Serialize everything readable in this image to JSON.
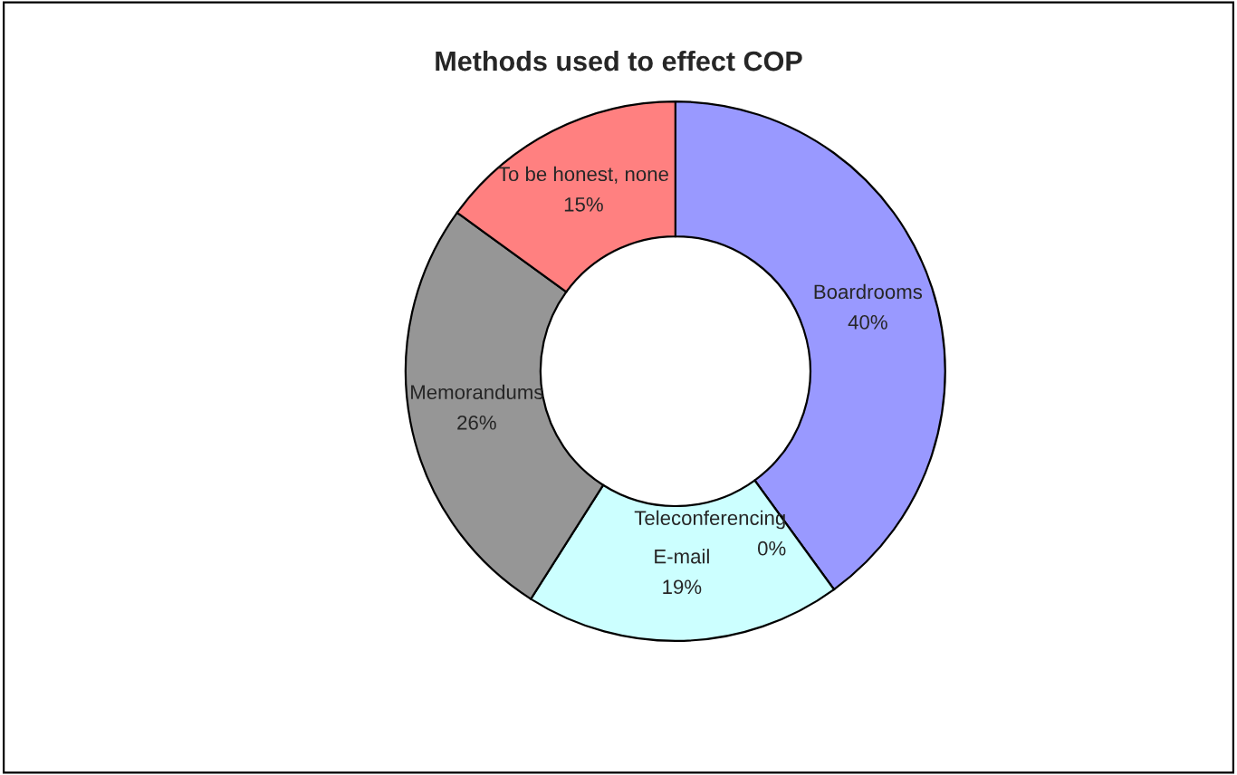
{
  "chart_data": {
    "type": "donut",
    "title": "Methods used to effect COP",
    "categories": [
      "Boardrooms",
      "Teleconferencing",
      "E-mail",
      "Memorandums",
      "To be honest, none"
    ],
    "values": [
      40,
      0,
      19,
      26,
      15
    ],
    "colors": [
      "#9999ff",
      "#993366",
      "#ccffff",
      "#969696",
      "#ff8080"
    ],
    "value_labels": [
      "40%",
      "0%",
      "19%",
      "26%",
      "15%"
    ],
    "legend": false
  }
}
